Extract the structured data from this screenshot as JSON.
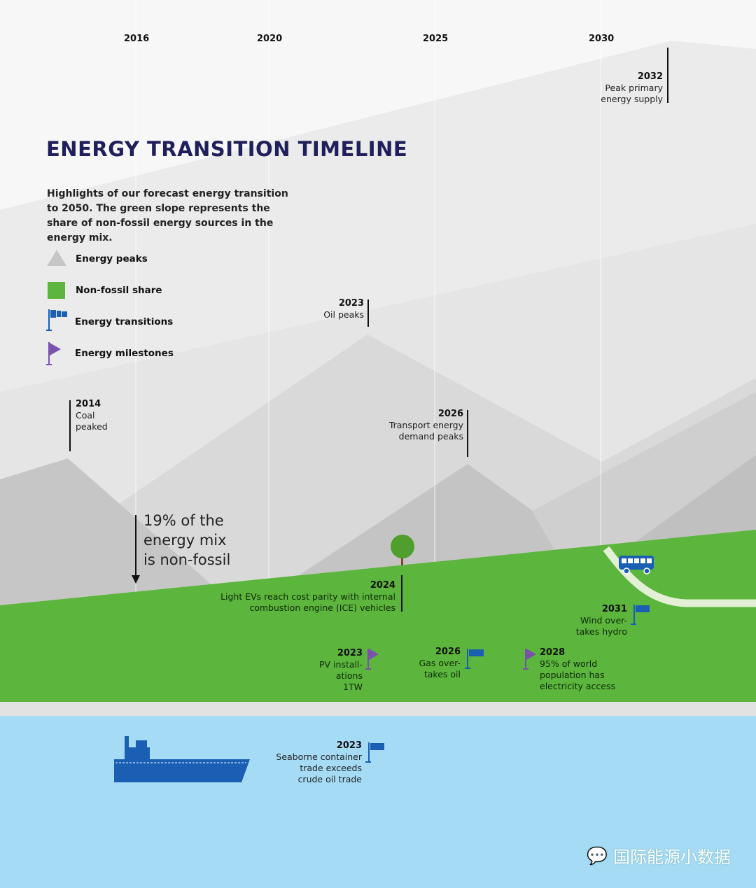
{
  "title": "ENERGY TRANSITION TIMELINE",
  "subtitle": "Highlights of our forecast energy transition to 2050. The green slope represents the share of non-fossil energy sources in the energy mix.",
  "years": [
    "2016",
    "2020",
    "2025",
    "2030"
  ],
  "legend": [
    {
      "icon": "triangle-icon",
      "label": "Energy peaks"
    },
    {
      "icon": "square-icon",
      "label": "Non-fossil share"
    },
    {
      "icon": "transition-flag-icon",
      "label": "Energy transitions"
    },
    {
      "icon": "milestone-flag-icon",
      "label": "Energy milestones"
    }
  ],
  "peaks": [
    {
      "year": "2032",
      "text": "Peak primary energy supply"
    },
    {
      "year": "2023",
      "text": "Oil peaks"
    },
    {
      "year": "2014",
      "text": "Coal peaked"
    },
    {
      "year": "2026",
      "text": "Transport energy demand peaks"
    },
    {
      "year": "2024",
      "text": "Light EVs reach cost parity with internal combustion engine (ICE) vehicles"
    }
  ],
  "nonfossil_note": "19% of the energy mix is non-fossil",
  "events": [
    {
      "year": "2031",
      "text": "Wind over-takes hydro",
      "type": "transition"
    },
    {
      "year": "2023",
      "text": "PV install-ations 1TW",
      "type": "milestone"
    },
    {
      "year": "2026",
      "text": "Gas over-takes oil",
      "type": "transition"
    },
    {
      "year": "2028",
      "text": "95% of world population has electricity access",
      "type": "milestone"
    },
    {
      "year": "2023",
      "text": "Seaborne container trade exceeds crude oil trade",
      "type": "transition"
    }
  ],
  "watermark": "国际能源小数据",
  "colors": {
    "green": "#5cb53c",
    "water": "#a6dbf6",
    "navy": "#1f1f5c",
    "transition": "#1a5fb4",
    "milestone": "#7b52ab"
  }
}
